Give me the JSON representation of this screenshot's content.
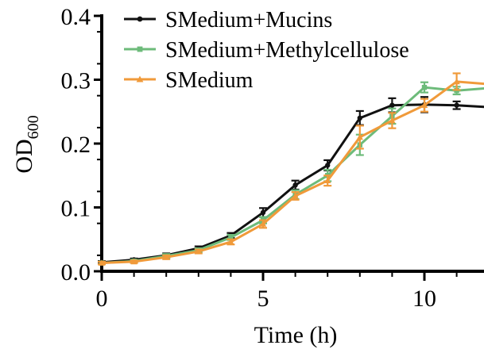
{
  "chart_data": {
    "type": "line",
    "xlabel": "Time (h)",
    "ylabel_main": "OD",
    "ylabel_sub": "600",
    "xlim": [
      0,
      12
    ],
    "ylim": [
      0,
      0.4
    ],
    "x_ticks": [
      0,
      5,
      10
    ],
    "x_tick_labels": [
      "0",
      "5",
      "10"
    ],
    "y_ticks": [
      0,
      0.1,
      0.2,
      0.3,
      0.4
    ],
    "y_tick_labels": [
      "0.0",
      "0.1",
      "0.2",
      "0.3",
      "0.4"
    ],
    "grid": false,
    "legend_position": "top-left",
    "x": [
      0,
      1,
      2,
      3,
      4,
      5,
      6,
      7,
      8,
      9,
      10,
      11,
      12
    ],
    "series": [
      {
        "name": "SMedium+Mucins",
        "color": "#111111",
        "marker": "circle",
        "values": [
          0.014,
          0.018,
          0.025,
          0.036,
          0.056,
          0.092,
          0.135,
          0.166,
          0.24,
          0.26,
          0.261,
          0.26,
          0.257
        ],
        "errors": [
          0.002,
          0.002,
          0.003,
          0.003,
          0.004,
          0.007,
          0.007,
          0.008,
          0.011,
          0.011,
          0.012,
          0.006,
          0.006
        ]
      },
      {
        "name": "SMedium+Methylcellulose",
        "color": "#6dbb7a",
        "marker": "square",
        "values": [
          0.013,
          0.016,
          0.024,
          0.033,
          0.053,
          0.08,
          0.12,
          0.15,
          0.198,
          0.243,
          0.288,
          0.283,
          0.287
        ],
        "errors": [
          0.002,
          0.002,
          0.003,
          0.003,
          0.004,
          0.005,
          0.007,
          0.009,
          0.016,
          0.012,
          0.008,
          0.006,
          0.006
        ]
      },
      {
        "name": "SMedium",
        "color": "#f09a3a",
        "marker": "triangle",
        "values": [
          0.013,
          0.015,
          0.022,
          0.031,
          0.046,
          0.074,
          0.118,
          0.142,
          0.21,
          0.236,
          0.26,
          0.297,
          0.293
        ],
        "errors": [
          0.002,
          0.002,
          0.003,
          0.003,
          0.004,
          0.006,
          0.006,
          0.008,
          0.018,
          0.012,
          0.01,
          0.013,
          0.008
        ]
      }
    ]
  }
}
